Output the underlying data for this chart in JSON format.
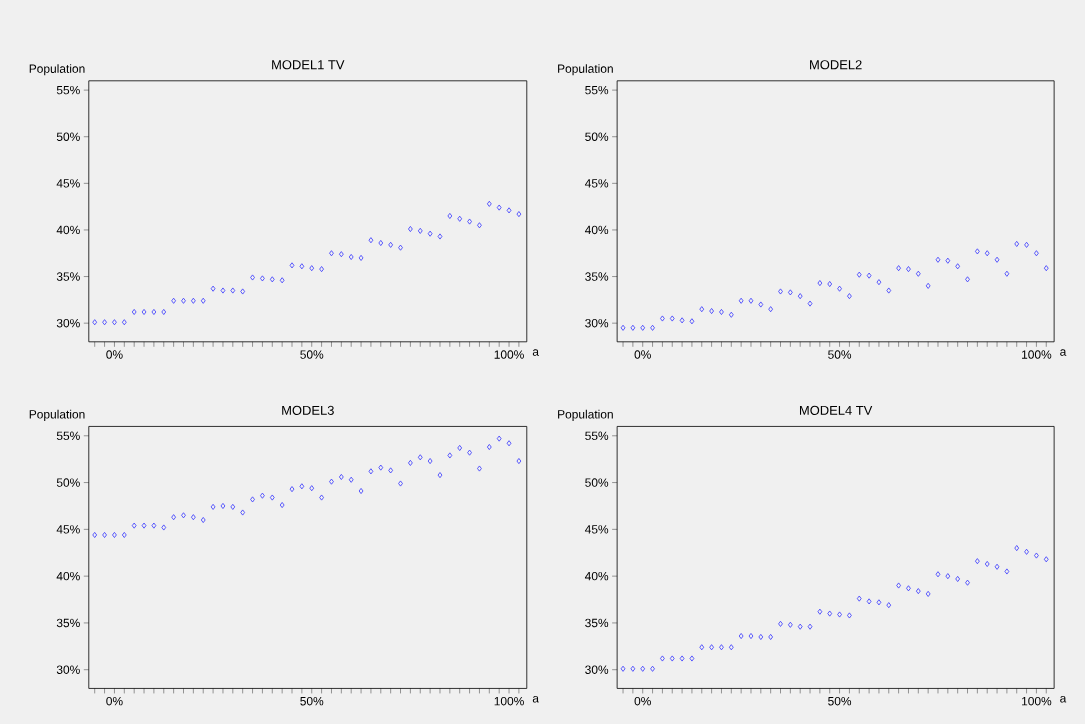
{
  "chart_data": [
    {
      "type": "scatter",
      "title": "MODEL1 TV",
      "ylabel": "Population",
      "xlabel": "a",
      "color": "#3333ff",
      "marker": "diamond",
      "grid": false,
      "categories": [
        null,
        null,
        "0%",
        null,
        null,
        null,
        null,
        null,
        null,
        null,
        null,
        null,
        null,
        null,
        null,
        null,
        null,
        null,
        null,
        null,
        null,
        null,
        "50%",
        null,
        null,
        null,
        null,
        null,
        null,
        null,
        null,
        null,
        null,
        null,
        null,
        null,
        null,
        null,
        null,
        null,
        null,
        null,
        "100%",
        null
      ],
      "values": [
        30.1,
        30.1,
        30.1,
        30.1,
        31.2,
        31.2,
        31.2,
        31.2,
        32.4,
        32.4,
        32.4,
        32.4,
        33.7,
        33.5,
        33.5,
        33.4,
        34.9,
        34.8,
        34.7,
        34.6,
        36.2,
        36.1,
        35.9,
        35.8,
        37.5,
        37.4,
        37.1,
        37.0,
        38.9,
        38.6,
        38.4,
        38.1,
        40.1,
        39.9,
        39.6,
        39.3,
        41.5,
        41.2,
        40.9,
        40.5,
        42.8,
        42.4,
        42.1,
        41.7
      ],
      "ylim": [
        28,
        56
      ],
      "yticks": [
        {
          "value": 30,
          "label": "30%"
        },
        {
          "value": 35,
          "label": "35%"
        },
        {
          "value": 40,
          "label": "40%"
        },
        {
          "value": 45,
          "label": "45%"
        },
        {
          "value": 50,
          "label": "50%"
        },
        {
          "value": 55,
          "label": "55%"
        }
      ]
    },
    {
      "type": "scatter",
      "title": "MODEL2",
      "ylabel": "Population",
      "xlabel": "a",
      "color": "#3333ff",
      "marker": "diamond",
      "grid": false,
      "categories": [
        null,
        null,
        "0%",
        null,
        null,
        null,
        null,
        null,
        null,
        null,
        null,
        null,
        null,
        null,
        null,
        null,
        null,
        null,
        null,
        null,
        null,
        null,
        "50%",
        null,
        null,
        null,
        null,
        null,
        null,
        null,
        null,
        null,
        null,
        null,
        null,
        null,
        null,
        null,
        null,
        null,
        null,
        null,
        "100%",
        null
      ],
      "values": [
        29.5,
        29.5,
        29.5,
        29.5,
        30.5,
        30.5,
        30.3,
        30.2,
        31.5,
        31.3,
        31.2,
        30.9,
        32.4,
        32.4,
        32.0,
        31.5,
        33.4,
        33.3,
        32.9,
        32.1,
        34.3,
        34.2,
        33.7,
        32.9,
        35.2,
        35.1,
        34.4,
        33.5,
        35.9,
        35.8,
        35.3,
        34.0,
        36.8,
        36.7,
        36.1,
        34.7,
        37.7,
        37.5,
        36.8,
        35.3,
        38.5,
        38.4,
        37.5,
        35.9
      ],
      "ylim": [
        28,
        56
      ],
      "yticks": [
        {
          "value": 30,
          "label": "30%"
        },
        {
          "value": 35,
          "label": "35%"
        },
        {
          "value": 40,
          "label": "40%"
        },
        {
          "value": 45,
          "label": "45%"
        },
        {
          "value": 50,
          "label": "50%"
        },
        {
          "value": 55,
          "label": "55%"
        }
      ]
    },
    {
      "type": "scatter",
      "title": "MODEL3",
      "ylabel": "Population",
      "xlabel": "a",
      "color": "#3333ff",
      "marker": "diamond",
      "grid": false,
      "categories": [
        null,
        null,
        "0%",
        null,
        null,
        null,
        null,
        null,
        null,
        null,
        null,
        null,
        null,
        null,
        null,
        null,
        null,
        null,
        null,
        null,
        null,
        null,
        "50%",
        null,
        null,
        null,
        null,
        null,
        null,
        null,
        null,
        null,
        null,
        null,
        null,
        null,
        null,
        null,
        null,
        null,
        null,
        null,
        "100%",
        null
      ],
      "values": [
        44.4,
        44.4,
        44.4,
        44.4,
        45.4,
        45.4,
        45.4,
        45.2,
        46.3,
        46.5,
        46.3,
        46.0,
        47.4,
        47.5,
        47.4,
        46.8,
        48.2,
        48.6,
        48.4,
        47.6,
        49.3,
        49.6,
        49.4,
        48.4,
        50.1,
        50.6,
        50.3,
        49.1,
        51.2,
        51.6,
        51.3,
        49.9,
        52.1,
        52.7,
        52.3,
        50.8,
        52.9,
        53.7,
        53.2,
        51.5,
        53.8,
        54.7,
        54.2,
        52.3
      ],
      "ylim": [
        28,
        56
      ],
      "yticks": [
        {
          "value": 30,
          "label": "30%"
        },
        {
          "value": 35,
          "label": "35%"
        },
        {
          "value": 40,
          "label": "40%"
        },
        {
          "value": 45,
          "label": "45%"
        },
        {
          "value": 50,
          "label": "50%"
        },
        {
          "value": 55,
          "label": "55%"
        }
      ]
    },
    {
      "type": "scatter",
      "title": "MODEL4 TV",
      "ylabel": "Population",
      "xlabel": "a",
      "color": "#3333ff",
      "marker": "diamond",
      "grid": false,
      "categories": [
        null,
        null,
        "0%",
        null,
        null,
        null,
        null,
        null,
        null,
        null,
        null,
        null,
        null,
        null,
        null,
        null,
        null,
        null,
        null,
        null,
        null,
        null,
        "50%",
        null,
        null,
        null,
        null,
        null,
        null,
        null,
        null,
        null,
        null,
        null,
        null,
        null,
        null,
        null,
        null,
        null,
        null,
        null,
        "100%",
        null
      ],
      "values": [
        30.1,
        30.1,
        30.1,
        30.1,
        31.2,
        31.2,
        31.2,
        31.2,
        32.4,
        32.4,
        32.4,
        32.4,
        33.6,
        33.6,
        33.5,
        33.5,
        34.9,
        34.8,
        34.6,
        34.6,
        36.2,
        36.0,
        35.9,
        35.8,
        37.6,
        37.3,
        37.2,
        36.9,
        39.0,
        38.7,
        38.4,
        38.1,
        40.2,
        40.0,
        39.7,
        39.3,
        41.6,
        41.3,
        41.0,
        40.5,
        43.0,
        42.6,
        42.2,
        41.8
      ],
      "ylim": [
        28,
        56
      ],
      "yticks": [
        {
          "value": 30,
          "label": "30%"
        },
        {
          "value": 35,
          "label": "35%"
        },
        {
          "value": 40,
          "label": "40%"
        },
        {
          "value": 45,
          "label": "45%"
        },
        {
          "value": 50,
          "label": "50%"
        },
        {
          "value": 55,
          "label": "55%"
        }
      ]
    }
  ]
}
